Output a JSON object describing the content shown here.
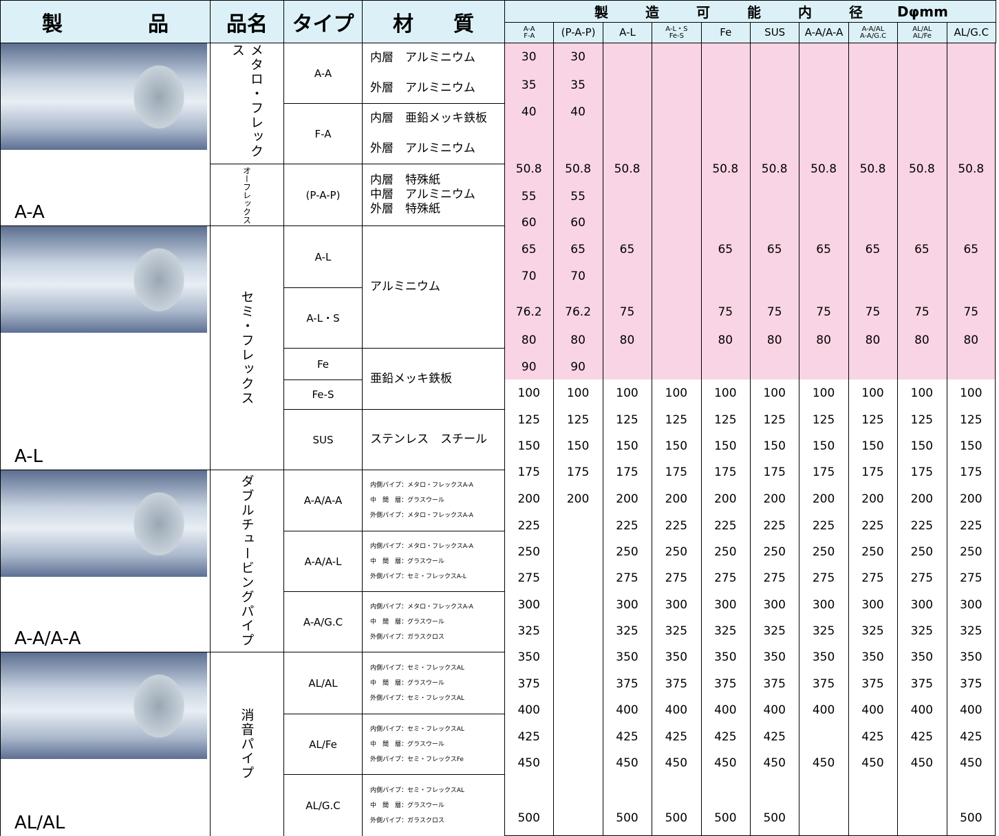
{
  "header": {
    "product": "製品",
    "name": "品名",
    "type": "タイプ",
    "material": "材質",
    "diameter_title": "製造可能内径",
    "diameter_unit": "Dφmm",
    "columns": [
      [
        "A-A",
        "F-A"
      ],
      [
        "(P-A-P)"
      ],
      [
        "A-L"
      ],
      [
        "A-L・S",
        "Fe-S"
      ],
      [
        "Fe"
      ],
      [
        "SUS"
      ],
      [
        "A-A/A-A"
      ],
      [
        "A-A/AL",
        "A-A/G.C"
      ],
      [
        "AL/AL",
        "AL/Fe"
      ],
      [
        "AL/G.C"
      ]
    ]
  },
  "products": [
    "A-A",
    "A-L",
    "A-A/A-A",
    "AL/AL"
  ],
  "names": [
    "メタロ・フレックス",
    "オーフレックス",
    "セミ・フレックス",
    "ダブルチュービングパイプ",
    "消音パイプ"
  ],
  "types": [
    "A-A",
    "F-A",
    "(P-A-P)",
    "A-L",
    "A-L・S",
    "Fe",
    "Fe-S",
    "SUS",
    "A-A/A-A",
    "A-A/A-L",
    "A-A/G.C",
    "AL/AL",
    "AL/Fe",
    "AL/G.C"
  ],
  "materials": [
    [
      "内層　アルミニウム",
      "外層　アルミニウム"
    ],
    [
      "内層　亜鉛メッキ鉄板",
      "外層　アルミニウム"
    ],
    [
      "内層　特殊紙",
      "中層　アルミニウム",
      "外層　特殊紙"
    ],
    [
      "アルミニウム"
    ],
    [
      "亜鉛メッキ鉄板"
    ],
    [
      "ステンレス　スチール"
    ],
    [
      "内側パイプ：メタロ・フレックスA-A",
      "中　間　層：グラスウール",
      "外側パイプ：メタロ・フレックスA-A"
    ],
    [
      "内側パイプ：メタロ・フレックスA-A",
      "中　間　層：グラスウール",
      "外側パイプ：セミ・フレックスA-L"
    ],
    [
      "内側パイプ：メタロ・フレックスA-A",
      "中　間　層：グラスウール",
      "外側パイプ：ガラスクロス"
    ],
    [
      "内側パイプ：セミ・フレックスAL",
      "中　間　層：グラスウール",
      "外側パイプ：セミ・フレックスAL"
    ],
    [
      "内側パイプ：セミ・フレックスAL",
      "中　間　層：グラスウール",
      "外側パイプ：セミ・フレックスFe"
    ],
    [
      "内側パイプ：セミ・フレックスAL",
      "中　間　層：グラスウール",
      "外側パイプ：ガラスクロス"
    ]
  ],
  "diameters": {
    "rows": [
      [
        30,
        30,
        null,
        null,
        null,
        null,
        null,
        null,
        null,
        null
      ],
      [
        35,
        35,
        null,
        null,
        null,
        null,
        null,
        null,
        null,
        null
      ],
      [
        40,
        40,
        null,
        null,
        null,
        null,
        null,
        null,
        null,
        null
      ],
      [
        50.8,
        50.8,
        50.8,
        null,
        50.8,
        50.8,
        50.8,
        50.8,
        50.8,
        50.8
      ],
      [
        55,
        55,
        null,
        null,
        null,
        null,
        null,
        null,
        null,
        null
      ],
      [
        60,
        60,
        null,
        null,
        null,
        null,
        null,
        null,
        null,
        null
      ],
      [
        65,
        65,
        65,
        null,
        65,
        65,
        65,
        65,
        65,
        65
      ],
      [
        70,
        70,
        null,
        null,
        null,
        null,
        null,
        null,
        null,
        null
      ],
      [
        76.2,
        76.2,
        75,
        null,
        75,
        75,
        75,
        75,
        75,
        75
      ],
      [
        80,
        80,
        80,
        null,
        80,
        80,
        80,
        80,
        80,
        80
      ],
      [
        90,
        90,
        null,
        null,
        null,
        null,
        null,
        null,
        null,
        null
      ],
      [
        100,
        100,
        100,
        100,
        100,
        100,
        100,
        100,
        100,
        100
      ],
      [
        125,
        125,
        125,
        125,
        125,
        125,
        125,
        125,
        125,
        125
      ],
      [
        150,
        150,
        150,
        150,
        150,
        150,
        150,
        150,
        150,
        150
      ],
      [
        175,
        175,
        175,
        175,
        175,
        175,
        175,
        175,
        175,
        175
      ],
      [
        200,
        200,
        200,
        200,
        200,
        200,
        200,
        200,
        200,
        200
      ],
      [
        225,
        null,
        225,
        225,
        225,
        225,
        225,
        225,
        225,
        225
      ],
      [
        250,
        null,
        250,
        250,
        250,
        250,
        250,
        250,
        250,
        250
      ],
      [
        275,
        null,
        275,
        275,
        275,
        275,
        275,
        275,
        275,
        275
      ],
      [
        300,
        null,
        300,
        300,
        300,
        300,
        300,
        300,
        300,
        300
      ],
      [
        325,
        null,
        325,
        325,
        325,
        325,
        325,
        325,
        325,
        325
      ],
      [
        350,
        null,
        350,
        350,
        350,
        350,
        350,
        350,
        350,
        350
      ],
      [
        375,
        null,
        375,
        375,
        375,
        375,
        375,
        375,
        375,
        375
      ],
      [
        400,
        null,
        400,
        400,
        400,
        400,
        400,
        400,
        400,
        400
      ],
      [
        425,
        null,
        425,
        425,
        425,
        425,
        null,
        425,
        425,
        425
      ],
      [
        450,
        null,
        450,
        450,
        450,
        450,
        450,
        450,
        450,
        450
      ],
      [
        500,
        null,
        500,
        500,
        500,
        500,
        null,
        null,
        null,
        500
      ]
    ]
  }
}
